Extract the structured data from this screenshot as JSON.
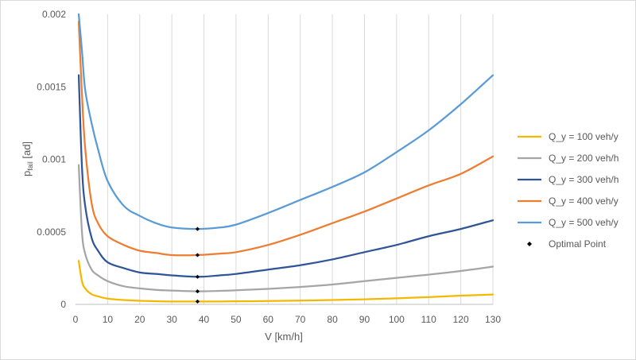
{
  "chart_data": {
    "type": "line",
    "title": "",
    "xlabel": "V [km/h]",
    "ylabel": {
      "main": "p",
      "sub": "fail",
      "rest": " [ad]"
    },
    "xlim": [
      0,
      130
    ],
    "ylim": [
      0,
      0.002
    ],
    "x_ticks": [
      0,
      10,
      20,
      30,
      40,
      50,
      60,
      70,
      80,
      90,
      100,
      110,
      120,
      130
    ],
    "y_ticks": [
      0,
      0.0005,
      0.001,
      0.0015,
      0.002
    ],
    "x_tick_labels": [
      "0",
      "10",
      "20",
      "30",
      "40",
      "50",
      "60",
      "70",
      "80",
      "90",
      "100",
      "110",
      "120",
      "130"
    ],
    "y_tick_labels": [
      "0",
      "0.0005",
      "0.001",
      "0.0015",
      "0.002"
    ],
    "grid": {
      "vertical": true,
      "horizontal": false
    },
    "legend_position": "right",
    "series": [
      {
        "name": "Q_y = 100 veh/y",
        "color": "#F5B800",
        "x": [
          1,
          2,
          3,
          5,
          7,
          10,
          15,
          20,
          25,
          30,
          38,
          45,
          50,
          60,
          70,
          80,
          90,
          100,
          110,
          120,
          130
        ],
        "y": [
          0.0003,
          0.00016,
          0.00011,
          7e-05,
          5.5e-05,
          4e-05,
          3e-05,
          2.5e-05,
          2.2e-05,
          2e-05,
          2e-05,
          2e-05,
          2.1e-05,
          2.3e-05,
          2.6e-05,
          3e-05,
          3.5e-05,
          4.2e-05,
          5e-05,
          6e-05,
          6.8e-05
        ]
      },
      {
        "name": "Q_y = 200 veh/h",
        "color": "#A5A5A5",
        "x": [
          1,
          2,
          3,
          5,
          7,
          10,
          15,
          20,
          25,
          30,
          38,
          45,
          50,
          60,
          70,
          80,
          90,
          100,
          110,
          120,
          130
        ],
        "y": [
          0.00096,
          0.0005,
          0.00035,
          0.00024,
          0.0002,
          0.00016,
          0.000125,
          0.00011,
          0.0001,
          9.5e-05,
          9e-05,
          9.3e-05,
          9.7e-05,
          0.000107,
          0.00012,
          0.000137,
          0.00016,
          0.000183,
          0.000205,
          0.00023,
          0.00026
        ]
      },
      {
        "name": "Q_y = 300 veh/h",
        "color": "#2F5597",
        "x": [
          1,
          2,
          3,
          5,
          7,
          10,
          15,
          20,
          25,
          30,
          38,
          45,
          50,
          60,
          70,
          80,
          90,
          100,
          110,
          120,
          130
        ],
        "y": [
          0.00158,
          0.00095,
          0.00068,
          0.00046,
          0.00037,
          0.00029,
          0.00025,
          0.00022,
          0.00021,
          0.0002,
          0.00019,
          0.0002,
          0.00021,
          0.00024,
          0.00027,
          0.00031,
          0.00036,
          0.00041,
          0.00047,
          0.00052,
          0.00058
        ]
      },
      {
        "name": "Q_y = 400 veh/y",
        "color": "#ED7D31",
        "x": [
          1,
          2,
          3,
          5,
          7,
          10,
          15,
          20,
          25,
          30,
          38,
          45,
          50,
          60,
          70,
          80,
          90,
          100,
          110,
          120,
          130
        ],
        "y": [
          0.00195,
          0.00145,
          0.00108,
          0.0007,
          0.00056,
          0.00047,
          0.00041,
          0.00037,
          0.000355,
          0.00034,
          0.00034,
          0.00035,
          0.00036,
          0.00041,
          0.00048,
          0.00056,
          0.00064,
          0.00073,
          0.00082,
          0.0009,
          0.00102
        ]
      },
      {
        "name": "Q_y = 500 veh/y",
        "color": "#5B9BD5",
        "x": [
          1,
          2,
          3,
          5,
          7,
          10,
          15,
          20,
          25,
          30,
          38,
          45,
          50,
          60,
          70,
          80,
          90,
          100,
          110,
          120,
          130
        ],
        "y": [
          0.002,
          0.00175,
          0.00148,
          0.00125,
          0.00107,
          0.00085,
          0.00068,
          0.00061,
          0.00056,
          0.00053,
          0.00052,
          0.00053,
          0.00055,
          0.00063,
          0.00072,
          0.00081,
          0.00091,
          0.00105,
          0.0012,
          0.00138,
          0.00158
        ]
      }
    ],
    "optimal_points": {
      "name": "Optimal Point",
      "color": "#000000",
      "x": [
        38,
        38,
        38,
        38,
        38
      ],
      "y": [
        2e-05,
        9e-05,
        0.00019,
        0.00034,
        0.00052
      ]
    }
  }
}
